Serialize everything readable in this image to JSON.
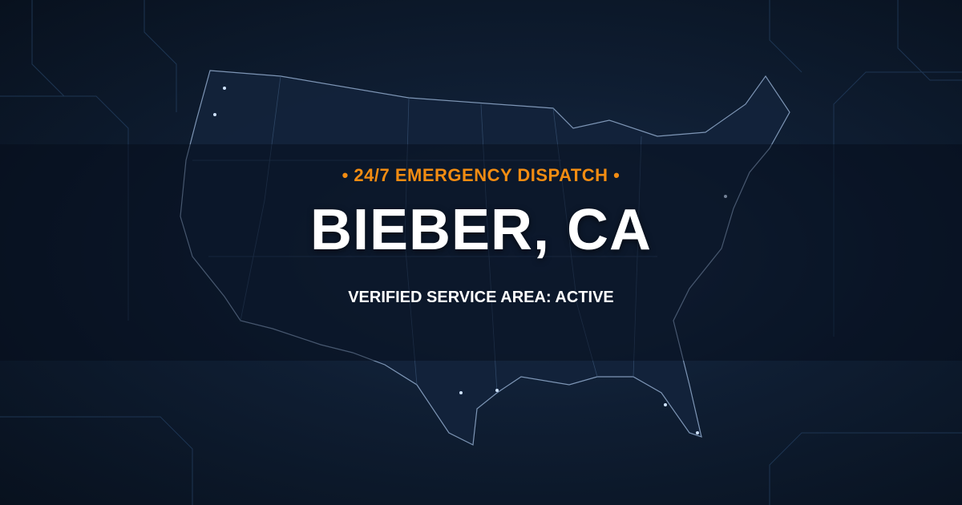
{
  "banner": {
    "kicker": "• 24/7 EMERGENCY DISPATCH •",
    "title": "BIEBER, CA",
    "subtitle": "VERIFIED SERVICE AREA: ACTIVE"
  },
  "colors": {
    "accent": "#f28c12",
    "background": "#0b1626",
    "text": "#ffffff"
  }
}
